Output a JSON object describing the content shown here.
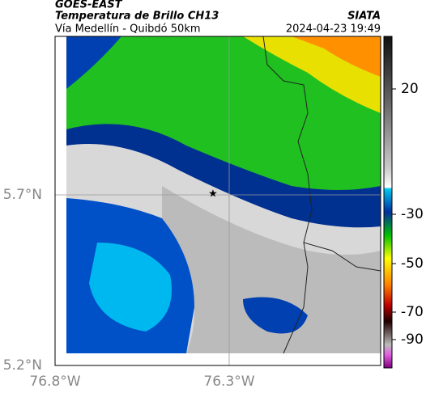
{
  "header": {
    "product": "GOES-EAST",
    "title": "Temperatura de Brillo CH13",
    "source": "SIATA",
    "subtitle": "Vía Medellín - Quibdó 50km",
    "timestamp": "2024-04-23 19:49"
  },
  "map": {
    "x_ticks": [
      "76.8°W",
      "76.3°W"
    ],
    "y_ticks": [
      "5.7°N",
      "5.2°N"
    ]
  },
  "colorbar": {
    "ticks": [
      20,
      -30,
      -50,
      -70,
      -90
    ]
  }
}
